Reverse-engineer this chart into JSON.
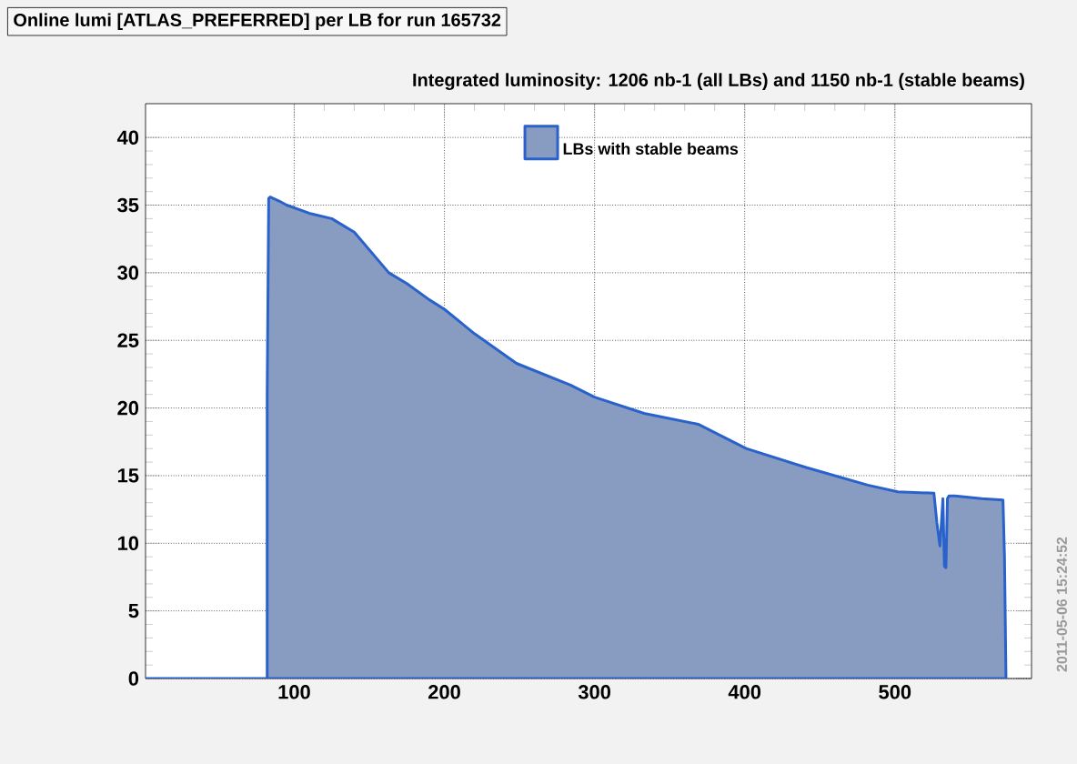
{
  "chart_data": {
    "type": "area",
    "title": "Online lumi [ATLAS_PREFERRED] per LB for run 165732",
    "subtitle": "Integrated luminosity: 1206 nb-1 (all LBs) and 1150 nb-1 (stable beams)",
    "annotations": [
      "2011-05-06 15:24:52"
    ],
    "xlim": [
      1,
      591
    ],
    "ylim": [
      0,
      42.5
    ],
    "xticks": [
      100,
      200,
      300,
      400,
      500
    ],
    "yticks": [
      0,
      5,
      10,
      15,
      20,
      25,
      30,
      35,
      40
    ],
    "grid": true,
    "legend": "top",
    "series": [
      {
        "name": "LBs with stable beams",
        "color": "#2a62cc",
        "x": [
          1,
          82,
          82,
          83,
          84,
          90,
          95,
          110,
          125,
          140,
          163,
          175,
          190,
          200,
          220,
          248,
          284,
          300,
          333,
          369,
          401,
          441,
          482,
          502,
          526,
          528,
          530,
          532,
          533,
          534,
          535,
          536,
          540,
          558,
          572,
          573,
          574
        ],
        "values": [
          0,
          0,
          21,
          35.5,
          35.6,
          35.3,
          35.0,
          34.4,
          34.0,
          33.0,
          30.0,
          29.2,
          28.0,
          27.3,
          25.5,
          23.3,
          21.7,
          20.8,
          19.6,
          18.8,
          17.0,
          15.6,
          14.3,
          13.8,
          13.7,
          11.5,
          9.8,
          13.3,
          8.3,
          8.2,
          13.3,
          13.5,
          13.5,
          13.3,
          13.2,
          9,
          0
        ]
      }
    ]
  }
}
